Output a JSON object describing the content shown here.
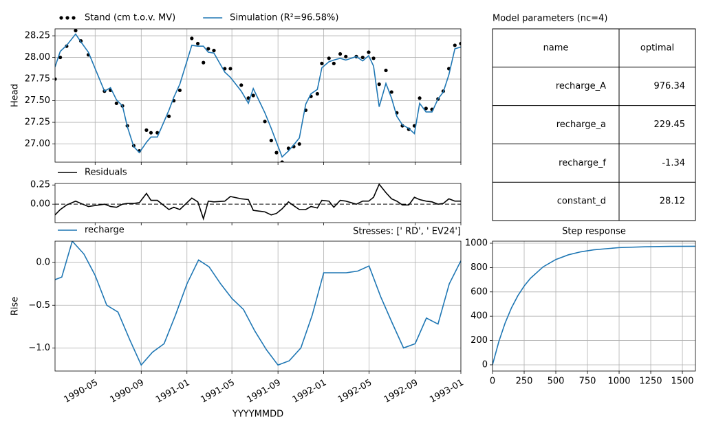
{
  "chart_data": [
    {
      "type": "line",
      "ylabel": "Head",
      "grid": true,
      "ylim": [
        26.79,
        28.33
      ],
      "yticks": [
        {
          "value": 27,
          "label": "27.00"
        },
        27.25,
        {
          "value": 27.5,
          "label": "27.50"
        },
        27.75,
        {
          "value": 28,
          "label": "28.00"
        },
        28.25
      ],
      "x": [
        "1990-01-14",
        "1990-01-28",
        "1990-02-14",
        "1990-03-10",
        "1990-03-24",
        "1990-04-13",
        "1990-05-26",
        "1990-06-11",
        "1990-06-27",
        "1990-07-13",
        "1990-07-26",
        "1990-08-12",
        "1990-08-27",
        "1990-09-15",
        "1990-09-27",
        "1990-10-14",
        "1990-11-14",
        "1990-11-27",
        "1990-12-13",
        "1991-01-14",
        "1991-01-30",
        "1991-02-14",
        "1991-02-27",
        "1991-03-14",
        "1991-04-12",
        "1991-04-27",
        "1991-05-26",
        "1991-06-14",
        "1991-06-27",
        "1991-07-28",
        "1991-08-14",
        "1991-08-28",
        "1991-09-12",
        "1991-09-29",
        "1991-10-13",
        "1991-10-28",
        "1991-11-14",
        "1991-11-28",
        "1991-12-15",
        "1991-12-27",
        "1992-01-15",
        "1992-01-28",
        "1992-02-14",
        "1992-02-29",
        "1992-03-28",
        "1992-04-14",
        "1992-04-30",
        "1992-05-13",
        "1992-05-28",
        "1992-06-15",
        "1992-06-30",
        "1992-07-14",
        "1992-07-29",
        "1992-08-15",
        "1992-08-30",
        "1992-09-13",
        "1992-09-30",
        "1992-10-16",
        "1992-11-01",
        "1992-11-15",
        "1992-11-30",
        "1992-12-16",
        "1993-01-01"
      ],
      "series": [
        {
          "name": "Stand (cm t.o.v. MV)",
          "color": "#000000",
          "style": "dots",
          "values": [
            27.75,
            28.0,
            28.13,
            28.31,
            28.19,
            28.03,
            27.61,
            27.62,
            27.47,
            27.44,
            27.21,
            26.98,
            26.92,
            27.16,
            27.13,
            27.13,
            27.32,
            27.5,
            27.62,
            28.22,
            28.16,
            27.94,
            28.1,
            28.08,
            27.87,
            27.87,
            27.68,
            27.53,
            27.56,
            27.26,
            27.04,
            26.9,
            26.79,
            26.95,
            26.97,
            27.0,
            27.39,
            27.55,
            27.58,
            27.93,
            27.99,
            27.93,
            28.04,
            28.01,
            28.01,
            28.0,
            28.06,
            27.99,
            27.69,
            27.85,
            27.6,
            27.36,
            27.21,
            27.17,
            27.21,
            27.53,
            27.41,
            27.4,
            27.52,
            27.61,
            27.87,
            28.14,
            28.16
          ]
        },
        {
          "name": "Simulation (R²=96.58%)",
          "color": "#1f77b4",
          "style": "line",
          "values": [
            27.89,
            28.07,
            28.14,
            28.27,
            28.18,
            28.06,
            27.61,
            27.65,
            27.51,
            27.44,
            27.2,
            26.97,
            26.9,
            27.02,
            27.08,
            27.08,
            27.39,
            27.54,
            27.69,
            28.14,
            28.13,
            28.13,
            28.06,
            28.05,
            27.83,
            27.77,
            27.61,
            27.47,
            27.64,
            27.36,
            27.18,
            27.02,
            26.85,
            26.92,
            26.99,
            27.07,
            27.46,
            27.58,
            27.63,
            27.88,
            27.95,
            27.97,
            27.99,
            27.97,
            28.01,
            27.96,
            28.02,
            27.9,
            27.43,
            27.7,
            27.53,
            27.32,
            27.22,
            27.18,
            27.12,
            27.47,
            27.37,
            27.37,
            27.52,
            27.6,
            27.8,
            28.1,
            28.12
          ]
        }
      ]
    },
    {
      "type": "line",
      "grid": false,
      "hline": 0,
      "ylim": [
        -0.24,
        0.27
      ],
      "yticks": [
        {
          "value": 0,
          "label": "0.00"
        },
        0.25
      ],
      "x": [
        "1990-01-14",
        "1990-01-28",
        "1990-02-14",
        "1990-03-10",
        "1990-03-24",
        "1990-04-13",
        "1990-05-26",
        "1990-06-11",
        "1990-06-27",
        "1990-07-13",
        "1990-07-26",
        "1990-08-12",
        "1990-08-27",
        "1990-09-15",
        "1990-09-27",
        "1990-10-14",
        "1990-11-14",
        "1990-11-27",
        "1990-12-13",
        "1991-01-14",
        "1991-01-30",
        "1991-02-14",
        "1991-02-27",
        "1991-03-14",
        "1991-04-12",
        "1991-04-27",
        "1991-05-26",
        "1991-06-14",
        "1991-06-27",
        "1991-07-28",
        "1991-08-14",
        "1991-08-28",
        "1991-09-12",
        "1991-09-29",
        "1991-10-13",
        "1991-10-28",
        "1991-11-14",
        "1991-11-28",
        "1991-12-15",
        "1991-12-27",
        "1992-01-15",
        "1992-01-28",
        "1992-02-14",
        "1992-02-29",
        "1992-03-28",
        "1992-04-14",
        "1992-04-30",
        "1992-05-13",
        "1992-05-28",
        "1992-06-15",
        "1992-06-30",
        "1992-07-14",
        "1992-07-29",
        "1992-08-15",
        "1992-08-30",
        "1992-09-13",
        "1992-09-30",
        "1992-10-16",
        "1992-11-01",
        "1992-11-15",
        "1992-11-30",
        "1992-12-16",
        "1993-01-01"
      ],
      "series": [
        {
          "name": "Residuals",
          "color": "#000000",
          "style": "line",
          "values": [
            -0.14,
            -0.07,
            -0.01,
            0.04,
            0.01,
            -0.03,
            0.0,
            -0.03,
            -0.04,
            0.0,
            0.01,
            0.01,
            0.02,
            0.14,
            0.05,
            0.05,
            -0.07,
            -0.04,
            -0.07,
            0.08,
            0.03,
            -0.19,
            0.04,
            0.03,
            0.04,
            0.1,
            0.07,
            0.06,
            -0.08,
            -0.1,
            -0.14,
            -0.12,
            -0.06,
            0.03,
            -0.02,
            -0.07,
            -0.07,
            -0.03,
            -0.05,
            0.05,
            0.04,
            -0.04,
            0.05,
            0.04,
            0.0,
            0.04,
            0.04,
            0.09,
            0.26,
            0.15,
            0.07,
            0.04,
            -0.01,
            -0.01,
            0.09,
            0.06,
            0.04,
            0.03,
            0.0,
            0.01,
            0.07,
            0.04,
            0.04
          ]
        }
      ]
    },
    {
      "type": "line",
      "ylabel": "Rise",
      "xlabel": "YYYYMMDD",
      "grid": true,
      "annotation": "Stresses: ['   RD', ' EV24']",
      "xlim": [
        "1990-01-14",
        "1993-01-01"
      ],
      "xticks": [
        {
          "value": "1990-05-01",
          "label": "1990-05"
        },
        {
          "value": "1990-09-01",
          "label": "1990-09"
        },
        {
          "value": "1991-01-01",
          "label": "1991-01"
        },
        {
          "value": "1991-05-01",
          "label": "1991-05"
        },
        {
          "value": "1991-09-01",
          "label": "1991-09"
        },
        {
          "value": "1992-01-01",
          "label": "1992-01"
        },
        {
          "value": "1992-05-01",
          "label": "1992-05"
        },
        {
          "value": "1992-09-01",
          "label": "1992-09"
        },
        {
          "value": "1993-01-01",
          "label": "1993-01"
        }
      ],
      "ylim": [
        -1.27,
        0.25
      ],
      "yticks": [
        {
          "value": -1,
          "label": "−1.0"
        },
        {
          "value": -0.5,
          "label": "−0.5"
        },
        {
          "value": 0,
          "label": "0.0"
        }
      ],
      "x": [
        "1990-01-14",
        "1990-02-01",
        "1990-03-01",
        "1990-04-01",
        "1990-05-01",
        "1990-06-01",
        "1990-07-01",
        "1990-08-01",
        "1990-09-01",
        "1990-10-01",
        "1990-11-01",
        "1990-12-01",
        "1991-01-01",
        "1991-02-01",
        "1991-03-01",
        "1991-04-01",
        "1991-05-01",
        "1991-06-01",
        "1991-07-01",
        "1991-08-01",
        "1991-09-01",
        "1991-10-01",
        "1991-11-01",
        "1991-12-01",
        "1992-01-01",
        "1992-02-01",
        "1992-03-01",
        "1992-04-01",
        "1992-05-01",
        "1992-06-01",
        "1992-07-01",
        "1992-08-01",
        "1992-09-01",
        "1992-10-01",
        "1992-11-01",
        "1992-12-01",
        "1993-01-01"
      ],
      "series": [
        {
          "name": "recharge",
          "color": "#1f77b4",
          "style": "line",
          "values": [
            -0.2,
            -0.17,
            0.25,
            0.1,
            -0.15,
            -0.5,
            -0.58,
            -0.9,
            -1.2,
            -1.05,
            -0.95,
            -0.62,
            -0.25,
            0.03,
            -0.05,
            -0.25,
            -0.42,
            -0.55,
            -0.8,
            -1.02,
            -1.2,
            -1.15,
            -1.0,
            -0.62,
            -0.12,
            -0.12,
            -0.12,
            -0.1,
            -0.04,
            -0.4,
            -0.7,
            -1.0,
            -0.95,
            -0.65,
            -0.72,
            -0.25,
            0.02
          ]
        }
      ]
    },
    {
      "type": "table",
      "title": "Model parameters (nc=4)",
      "columns": [
        "name",
        "optimal"
      ],
      "rows": [
        [
          "recharge_A",
          976.34
        ],
        [
          "recharge_a",
          229.45
        ],
        [
          "recharge_f",
          -1.34
        ],
        [
          "constant_d",
          28.12
        ]
      ]
    },
    {
      "type": "line",
      "title": "Step response",
      "grid": true,
      "xlim": [
        0,
        1603
      ],
      "xticks": [
        0,
        250,
        500,
        750,
        1000,
        1250,
        1500
      ],
      "ylim": [
        -51,
        1017
      ],
      "yticks": [
        0,
        200,
        400,
        600,
        800,
        1000
      ],
      "x": [
        0,
        50,
        100,
        150,
        200,
        250,
        300,
        400,
        500,
        600,
        700,
        800,
        1000,
        1200,
        1400,
        1600
      ],
      "series": [
        {
          "color": "#1f77b4",
          "style": "line",
          "values": [
            0,
            191,
            345,
            469,
            568,
            648,
            712,
            806,
            866,
            905,
            930,
            946,
            964,
            971,
            974,
            975
          ]
        }
      ]
    }
  ]
}
